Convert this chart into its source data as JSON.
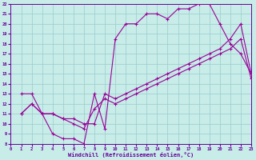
{
  "bg_color": "#c8ece8",
  "line_color": "#990099",
  "grid_color": "#99cccc",
  "tick_color": "#660099",
  "xlabel": "Windchill (Refroidissement éolien,°C)",
  "xlim": [
    0,
    23
  ],
  "ylim": [
    8,
    22
  ],
  "xticks": [
    0,
    1,
    2,
    3,
    4,
    5,
    6,
    7,
    8,
    9,
    10,
    11,
    12,
    13,
    14,
    15,
    16,
    17,
    18,
    19,
    20,
    21,
    22,
    23
  ],
  "yticks": [
    8,
    9,
    10,
    11,
    12,
    13,
    14,
    15,
    16,
    17,
    18,
    19,
    20,
    21,
    22
  ],
  "line1_x": [
    1,
    2,
    3,
    4,
    5,
    6,
    7,
    8,
    9,
    10,
    11,
    12,
    13,
    14,
    15,
    16,
    17,
    18,
    19,
    20,
    21,
    22,
    23
  ],
  "line1_y": [
    11,
    12,
    11,
    9,
    8.5,
    8.5,
    8,
    13,
    9.5,
    18.5,
    20,
    20,
    21,
    21,
    20.5,
    21.5,
    21.5,
    22,
    22,
    20,
    18,
    17,
    15
  ],
  "line2_x": [
    1,
    2,
    3,
    4,
    5,
    6,
    7,
    8,
    9,
    10,
    11,
    12,
    13,
    14,
    15,
    16,
    17,
    18,
    19,
    20,
    21,
    22,
    23
  ],
  "line2_y": [
    13,
    13,
    11,
    11,
    10.5,
    10.5,
    10,
    10,
    13,
    12.5,
    13,
    13.5,
    14,
    14.5,
    15,
    15.5,
    16,
    16.5,
    17,
    17.5,
    18.5,
    20,
    15
  ],
  "line3_x": [
    1,
    2,
    3,
    4,
    5,
    6,
    7,
    8,
    9,
    10,
    11,
    12,
    13,
    14,
    15,
    16,
    17,
    18,
    19,
    20,
    21,
    22,
    23
  ],
  "line3_y": [
    11,
    12,
    11,
    11,
    10.5,
    10,
    9.5,
    11.5,
    12.5,
    12,
    12.5,
    13,
    13.5,
    14,
    14.5,
    15,
    15.5,
    16,
    16.5,
    17,
    17.5,
    18.5,
    14.5
  ]
}
